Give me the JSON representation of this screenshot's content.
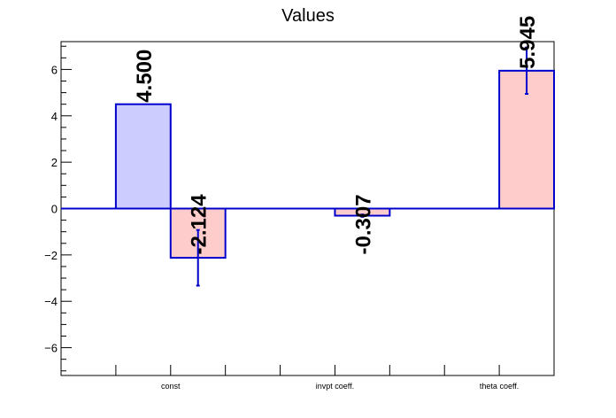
{
  "chart_data": {
    "type": "bar",
    "title": "Values",
    "xlabel": "",
    "ylabel": "",
    "ylim": [
      -7.2,
      7.2
    ],
    "yticks": [
      -6,
      -4,
      -2,
      0,
      2,
      4,
      6
    ],
    "yticks_labels": [
      "−6",
      "−4",
      "−2",
      "0",
      "2",
      "4",
      "6"
    ],
    "categories": [
      "const",
      "invpt coeff.",
      "theta coeff."
    ],
    "grid": false,
    "legend": "none",
    "bars": [
      {
        "category": "const",
        "slot": 0,
        "value": 4.5,
        "error": 0.0,
        "label": "4.500",
        "color": "#ccccff"
      },
      {
        "category": "const",
        "slot": 1,
        "value": -2.124,
        "error": 1.2,
        "label": "-2.124",
        "color": "#ffcccc"
      },
      {
        "category": "invpt coeff.",
        "slot": 1,
        "value": -0.307,
        "error": 0.05,
        "label": "-0.307",
        "color": "#ffcccc"
      },
      {
        "category": "theta coeff.",
        "slot": 1,
        "value": 5.945,
        "error": 1.0,
        "label": "5.945",
        "color": "#ffcccc"
      }
    ],
    "colors": {
      "outline": "#0000cc",
      "axis": "#000000"
    }
  }
}
